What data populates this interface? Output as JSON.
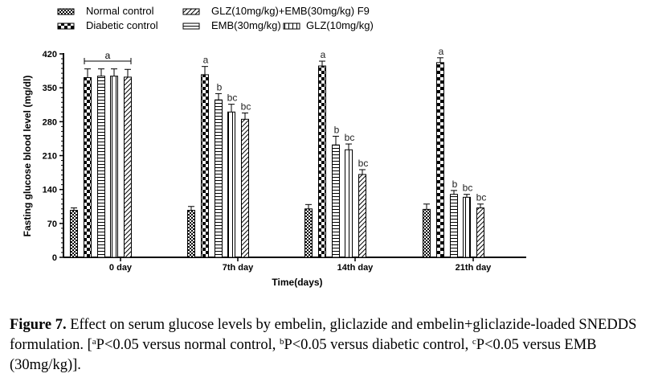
{
  "chart_data": {
    "type": "bar",
    "title": "",
    "xlabel": "Time(days)",
    "ylabel": "Fasting glucose blood level (mg/dl)",
    "ylim": [
      0,
      420
    ],
    "yticks": [
      "0",
      "70",
      "140",
      "210",
      "280",
      "350",
      "420"
    ],
    "categories": [
      "0 day",
      "7th day",
      "14th day",
      "21th day"
    ],
    "series": [
      {
        "name": "Normal control",
        "pattern": "small-check",
        "values": [
          97,
          97,
          100,
          99
        ],
        "errors": [
          5,
          8,
          9,
          11
        ],
        "labels": [
          "",
          "",
          "",
          ""
        ]
      },
      {
        "name": "Diabetic control",
        "pattern": "large-check",
        "values": [
          371,
          377,
          395,
          402
        ],
        "errors": [
          18,
          17,
          10,
          10
        ],
        "labels": [
          "",
          "a",
          "a",
          "a"
        ]
      },
      {
        "name": "EMB(30mg/kg)",
        "pattern": "horizontal",
        "values": [
          374,
          325,
          232,
          130
        ],
        "errors": [
          15,
          13,
          18,
          8
        ],
        "labels": [
          "",
          "b",
          "b",
          "b"
        ]
      },
      {
        "name": "GLZ(10mg/kg)",
        "pattern": "vertical",
        "values": [
          374,
          300,
          222,
          124
        ],
        "errors": [
          15,
          16,
          12,
          6
        ],
        "labels": [
          "",
          "bc",
          "bc",
          "bc"
        ]
      },
      {
        "name": "GLZ(10mg/kg)+EMB(30mg/kg) F9",
        "pattern": "diagonal",
        "values": [
          372,
          285,
          171,
          102
        ],
        "errors": [
          16,
          13,
          10,
          8
        ],
        "labels": [
          "",
          "bc",
          "bc",
          "bc"
        ]
      }
    ],
    "bracket_label": "a",
    "legend_position": "top-left",
    "grid": false
  },
  "caption": {
    "figure": "Figure 7.",
    "text": " Effect on serum glucose levels by embelin, gliclazide and embelin+gliclazide-loaded SNEDDS formulation. [",
    "sup_a": "a",
    "part_a": "P<0.05 versus normal control, ",
    "sup_b": "b",
    "part_b": "P<0.05 versus diabetic control, ",
    "sup_c": "c",
    "part_c": "P<0.05 versus EMB (30mg/kg)]."
  }
}
